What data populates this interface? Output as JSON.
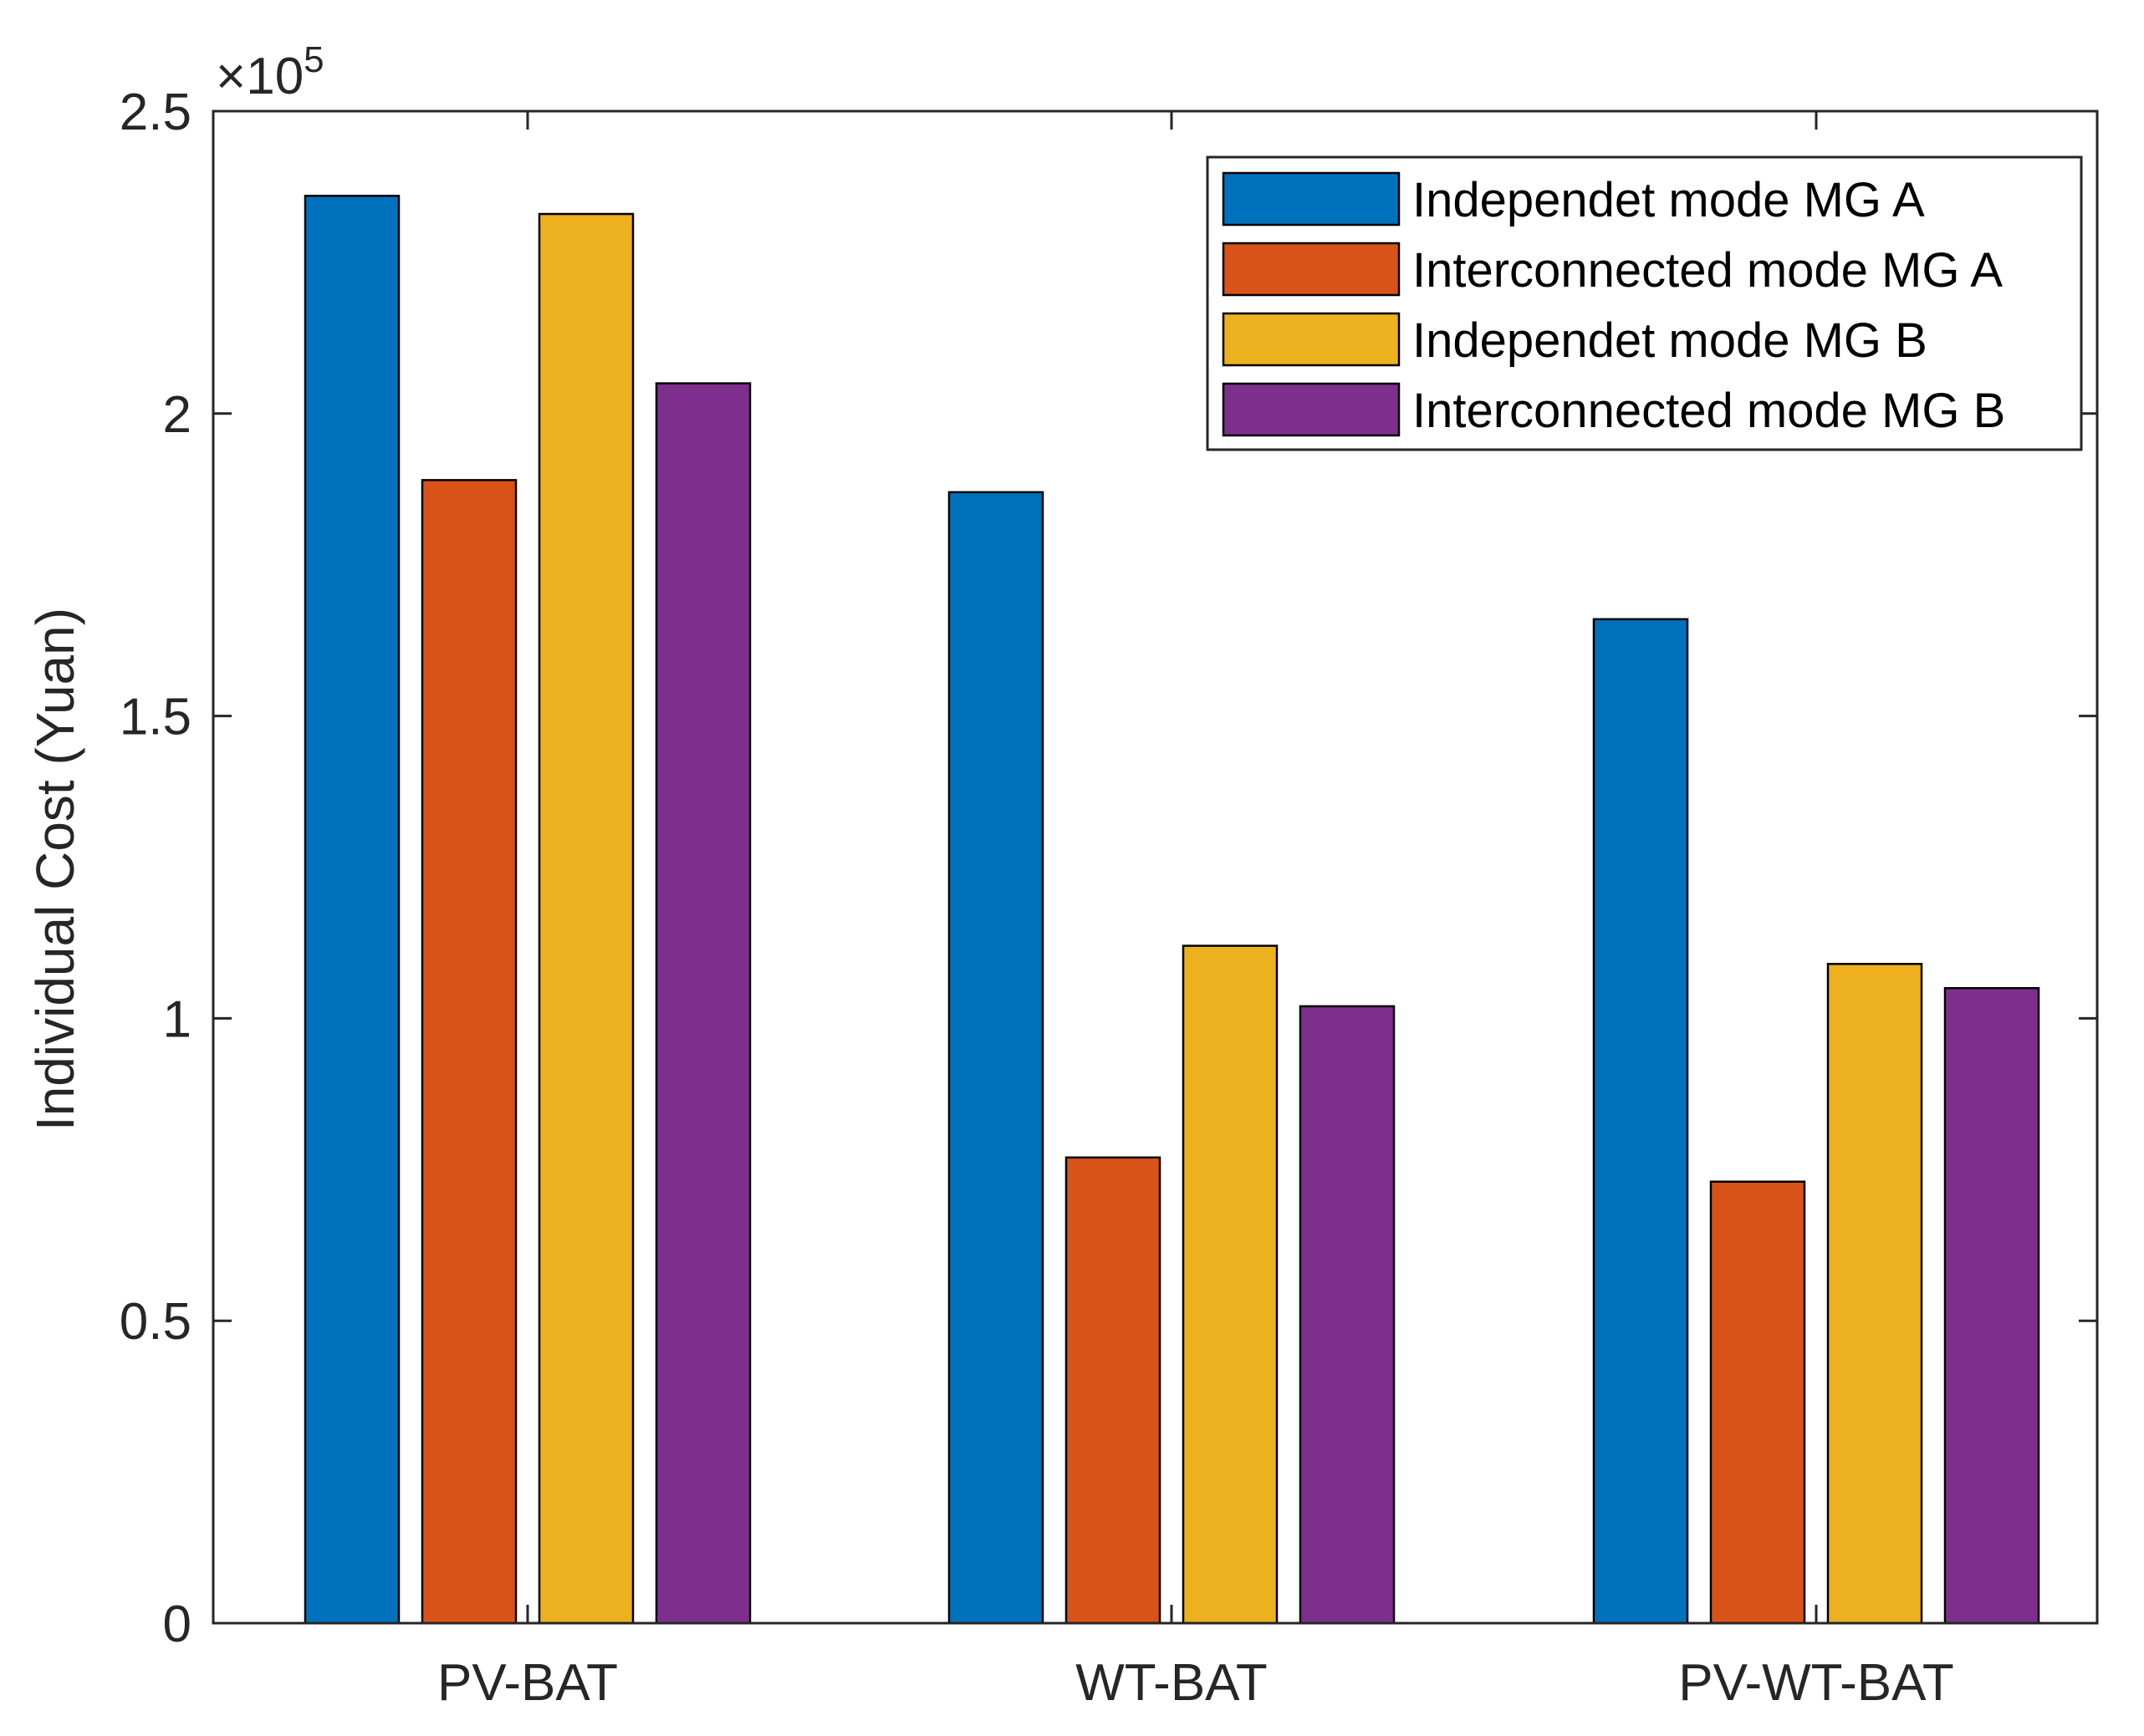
{
  "chart_data": {
    "type": "bar",
    "title": "",
    "xlabel": "",
    "ylabel": "Individual Cost (Yuan)",
    "y_exponent_label": "×10",
    "y_exponent_power": "5",
    "categories": [
      "PV-BAT",
      "WT-BAT",
      "PV-WT-BAT"
    ],
    "ylim": [
      0,
      2.5
    ],
    "yticks": [
      0,
      0.5,
      1,
      1.5,
      2,
      2.5
    ],
    "ytick_labels": [
      "0",
      "0.5",
      "1",
      "1.5",
      "2",
      "2.5"
    ],
    "grid": false,
    "legend_position": "top-right",
    "series": [
      {
        "name": "Independet mode MG A",
        "color": "#0072BD",
        "values": [
          2.36,
          1.87,
          1.66
        ]
      },
      {
        "name": "Interconnected mode MG A",
        "color": "#D95319",
        "values": [
          1.89,
          0.77,
          0.73
        ]
      },
      {
        "name": "Independet mode MG B",
        "color": "#EDB120",
        "values": [
          2.33,
          1.12,
          1.09
        ]
      },
      {
        "name": "Interconnected mode MG B",
        "color": "#7E2F8E",
        "values": [
          2.05,
          1.02,
          1.05
        ]
      }
    ]
  }
}
